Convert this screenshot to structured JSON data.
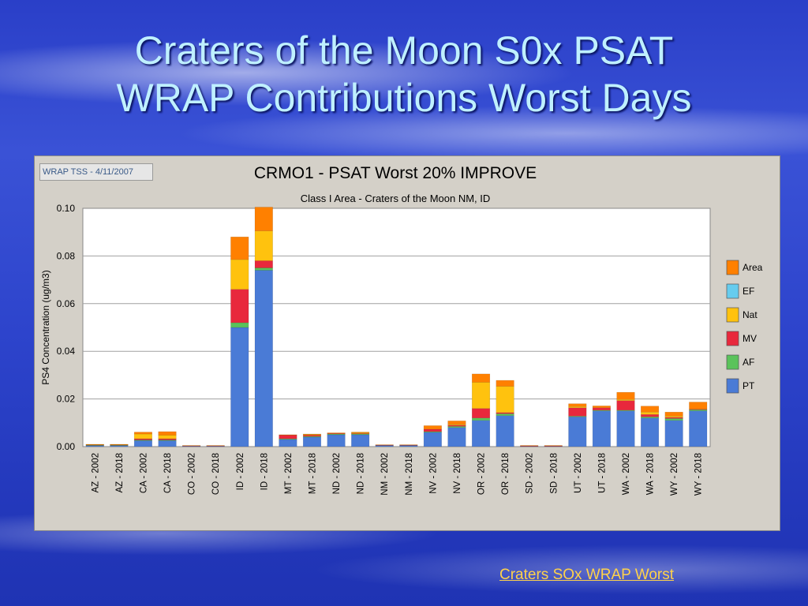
{
  "slide": {
    "title_line1": "Craters of the Moon S0x PSAT",
    "title_line2": "WRAP Contributions Worst Days",
    "footer_link": "Craters SOx WRAP Worst"
  },
  "chart_data": {
    "type": "bar",
    "stacked": true,
    "badge": "WRAP TSS - 4/11/2007",
    "title": "CRMO1 - PSAT Worst 20% IMPROVE",
    "subtitle": "Class I Area - Craters of the Moon NM, ID",
    "xlabel": "",
    "ylabel": "PS4 Concentration (ug/m3)",
    "ylim": [
      0,
      0.1
    ],
    "yticks": [
      "0.00",
      "0.02",
      "0.04",
      "0.06",
      "0.08",
      "0.10"
    ],
    "grid": true,
    "legend_position": "right",
    "categories": [
      "AZ - 2002",
      "AZ - 2018",
      "CA - 2002",
      "CA - 2018",
      "CO - 2002",
      "CO - 2018",
      "ID - 2002",
      "ID - 2018",
      "MT - 2002",
      "MT - 2018",
      "ND - 2002",
      "ND - 2018",
      "NM - 2002",
      "NM - 2018",
      "NV - 2002",
      "NV - 2018",
      "OR - 2002",
      "OR - 2018",
      "SD - 2002",
      "SD - 2018",
      "UT - 2002",
      "UT - 2018",
      "WA - 2002",
      "WA - 2018",
      "WY - 2002",
      "WY - 2018"
    ],
    "series": [
      {
        "name": "PT",
        "color": "#4a7bd6",
        "values": [
          0.0005,
          0.0005,
          0.0025,
          0.0025,
          0.0003,
          0.0003,
          0.05,
          0.074,
          0.003,
          0.004,
          0.005,
          0.005,
          0.0005,
          0.0005,
          0.006,
          0.008,
          0.011,
          0.013,
          0.0002,
          0.0002,
          0.0125,
          0.015,
          0.015,
          0.012,
          0.011,
          0.015
        ]
      },
      {
        "name": "AF",
        "color": "#5bc35b",
        "values": [
          0.0001,
          0.0001,
          0.0003,
          0.0003,
          0,
          0,
          0.002,
          0.001,
          0.0003,
          0.0003,
          0.0003,
          0.0003,
          0,
          0,
          0.0003,
          0.0005,
          0.001,
          0.0008,
          0,
          0,
          0.0003,
          0.0003,
          0.0003,
          0.0005,
          0.0008,
          0.0005
        ]
      },
      {
        "name": "MV",
        "color": "#e8283c",
        "values": [
          0.0002,
          0.0002,
          0.0005,
          0.0005,
          0.0001,
          0.0001,
          0.014,
          0.003,
          0.0015,
          0.0005,
          0.0002,
          0.0002,
          0.0002,
          0.0002,
          0.001,
          0.0005,
          0.004,
          0.0005,
          0.0001,
          0.0001,
          0.0035,
          0.001,
          0.004,
          0.001,
          0.0005,
          0.0002
        ]
      },
      {
        "name": "Nat",
        "color": "#ffc20e",
        "values": [
          0.0001,
          0.0001,
          0.002,
          0.0015,
          0,
          0,
          0.0125,
          0.0125,
          0,
          0.0003,
          0,
          0.0003,
          0,
          0,
          0,
          0.0003,
          0.011,
          0.011,
          0,
          0,
          0.0005,
          0,
          0.0005,
          0.001,
          0.0005,
          0
        ]
      },
      {
        "name": "EF",
        "color": "#66ccee",
        "values": [
          0,
          0,
          0,
          0,
          0,
          0,
          0,
          0,
          0,
          0,
          0,
          0,
          0,
          0,
          0,
          0,
          0,
          0,
          0,
          0,
          0,
          0,
          0,
          0,
          0,
          0
        ]
      },
      {
        "name": "Area",
        "color": "#ff8000",
        "values": [
          0.0001,
          0.0001,
          0.0008,
          0.0015,
          0.0001,
          0.0001,
          0.0095,
          0.01,
          0.0002,
          0.0002,
          0.0003,
          0.0003,
          0.0001,
          0.0001,
          0.0015,
          0.0015,
          0.0035,
          0.0025,
          0.0002,
          0.0002,
          0.0012,
          0.0008,
          0.003,
          0.0025,
          0.0017,
          0.003
        ]
      }
    ]
  }
}
